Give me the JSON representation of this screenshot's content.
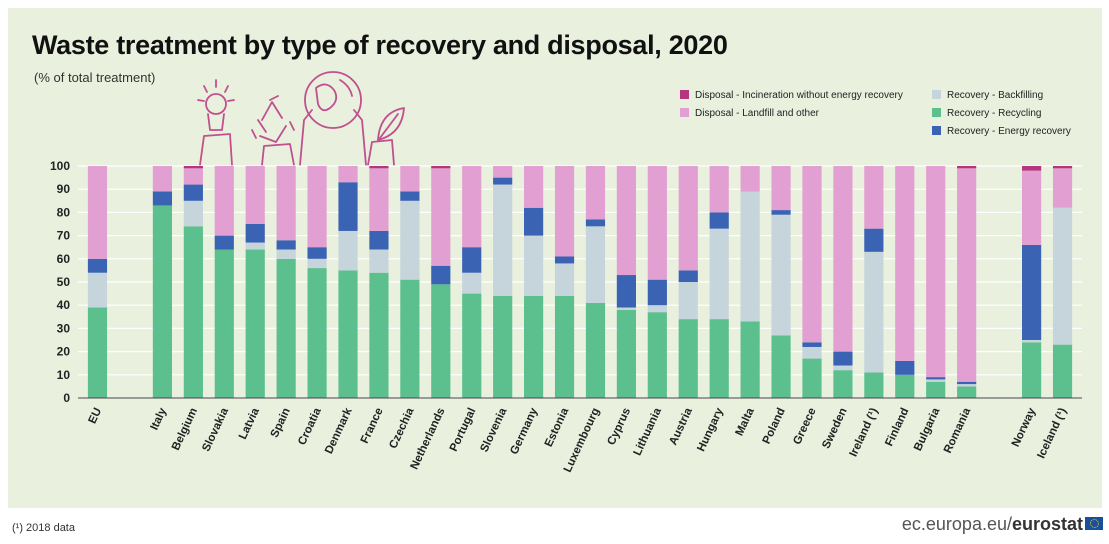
{
  "header": {
    "title": "Waste treatment by type of recovery and disposal, 2020",
    "subtitle": "(% of total treatment)"
  },
  "footer": {
    "footnote": "(¹) 2018 data",
    "source_prefix": "ec.europa.eu/",
    "source_brand": "eurostat"
  },
  "colors": {
    "incineration": "#b5357e",
    "landfill": "#e29fd1",
    "backfilling": "#c6d4dc",
    "recycling": "#5cc08e",
    "energy": "#3a63b3",
    "background": "#e9f0de",
    "icons": "#c0508e"
  },
  "icons": [
    "lightbulb-hand-icon",
    "recycle-hand-icon",
    "globe-hands-icon",
    "leaf-hand-icon"
  ],
  "chart_data": {
    "type": "bar",
    "stacked": true,
    "ylim": [
      0,
      100
    ],
    "yticks": [
      0,
      10,
      20,
      30,
      40,
      50,
      60,
      70,
      80,
      90,
      100
    ],
    "legend_position": "top-right",
    "categories": [
      "EU",
      "Italy",
      "Belgium",
      "Slovakia",
      "Latvia",
      "Spain",
      "Croatia",
      "Denmark",
      "France",
      "Czechia",
      "Netherlands",
      "Portugal",
      "Slovenia",
      "Germany",
      "Estonia",
      "Luxembourg",
      "Cyprus",
      "Lithuania",
      "Austria",
      "Hungary",
      "Malta",
      "Poland",
      "Greece",
      "Sweden",
      "Ireland (¹)",
      "Finland",
      "Bulgaria",
      "Romania",
      "Norway",
      "Iceland (¹)"
    ],
    "groups": [
      1,
      27,
      2
    ],
    "series": [
      {
        "key": "recycling",
        "name": "Recovery - Recycling",
        "values": [
          39,
          83,
          74,
          64,
          64,
          60,
          56,
          55,
          54,
          51,
          49,
          45,
          44,
          44,
          44,
          41,
          38,
          37,
          34,
          34,
          33,
          27,
          17,
          12,
          11,
          10,
          7,
          5,
          24,
          23
        ]
      },
      {
        "key": "backfilling",
        "name": "Recovery - Backfilling",
        "values": [
          15,
          0,
          11,
          0,
          3,
          4,
          4,
          17,
          10,
          34,
          0,
          9,
          48,
          26,
          14,
          33,
          1,
          3,
          16,
          39,
          56,
          52,
          5,
          2,
          52,
          0,
          1,
          1,
          1,
          59
        ]
      },
      {
        "key": "energy",
        "name": "Recovery - Energy recovery",
        "values": [
          6,
          6,
          7,
          6,
          8,
          4,
          5,
          21,
          8,
          4,
          8,
          11,
          3,
          12,
          3,
          3,
          14,
          11,
          5,
          7,
          0,
          2,
          2,
          6,
          10,
          6,
          1,
          1,
          41,
          0
        ]
      },
      {
        "key": "landfill",
        "name": "Disposal - Landfill and other",
        "values": [
          40,
          11,
          7,
          30,
          25,
          32,
          35,
          7,
          27,
          11,
          42,
          35,
          5,
          18,
          39,
          23,
          47,
          49,
          45,
          20,
          11,
          19,
          76,
          80,
          27,
          84,
          91,
          92,
          32,
          17
        ]
      },
      {
        "key": "incineration",
        "name": "Disposal - Incineration without energy recovery",
        "values": [
          0,
          0,
          1,
          0,
          0,
          0,
          0,
          0,
          1,
          0,
          1,
          0,
          0,
          0,
          0,
          0,
          0,
          0,
          0,
          0,
          0,
          0,
          0,
          0,
          0,
          0,
          0,
          1,
          2,
          1
        ]
      }
    ],
    "legend": [
      {
        "key": "incineration",
        "label": "Disposal - Incineration without energy recovery"
      },
      {
        "key": "landfill",
        "label": "Disposal - Landfill and other"
      },
      {
        "key": "backfilling",
        "label": "Recovery - Backfilling"
      },
      {
        "key": "recycling",
        "label": "Recovery - Recycling"
      },
      {
        "key": "energy",
        "label": "Recovery - Energy recovery"
      }
    ]
  }
}
